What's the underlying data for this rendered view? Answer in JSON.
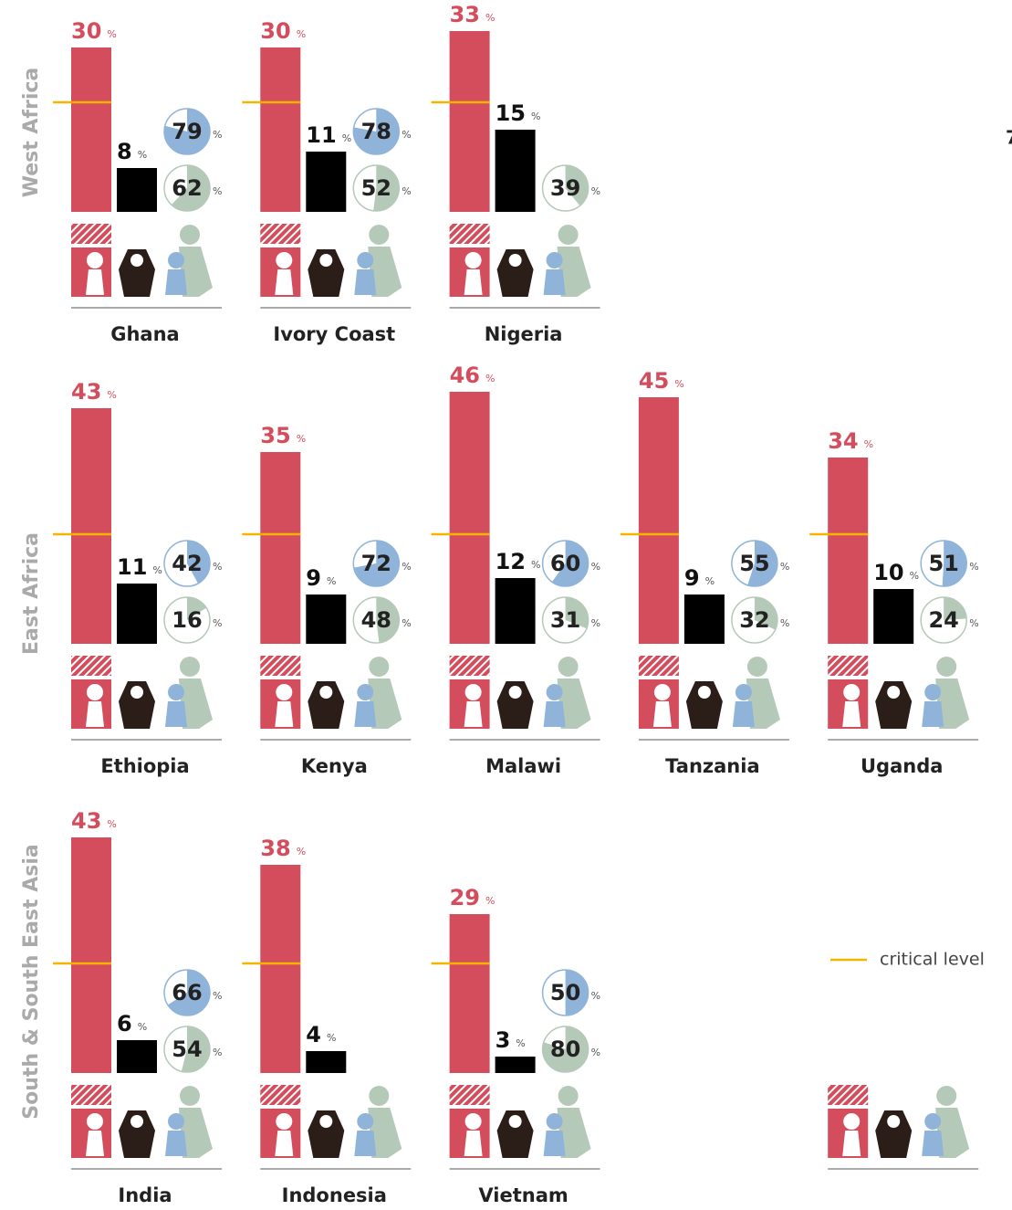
{
  "unit": "%",
  "critical_level": 20,
  "legend": {
    "critical": "critical level"
  },
  "edge_text": "7",
  "regions": [
    {
      "name": "West Africa",
      "countries": [
        {
          "name": "Ghana",
          "red_bar": 30,
          "black_bar": 8,
          "blue_pie": 79,
          "green_pie": 62
        },
        {
          "name": "Ivory Coast",
          "red_bar": 30,
          "black_bar": 11,
          "blue_pie": 78,
          "green_pie": 52
        },
        {
          "name": "Nigeria",
          "red_bar": 33,
          "black_bar": 15,
          "blue_pie": null,
          "green_pie": 39
        }
      ]
    },
    {
      "name": "East Africa",
      "countries": [
        {
          "name": "Ethiopia",
          "red_bar": 43,
          "black_bar": 11,
          "blue_pie": 42,
          "green_pie": 16
        },
        {
          "name": "Kenya",
          "red_bar": 35,
          "black_bar": 9,
          "blue_pie": 72,
          "green_pie": 48
        },
        {
          "name": "Malawi",
          "red_bar": 46,
          "black_bar": 12,
          "blue_pie": 60,
          "green_pie": 31
        },
        {
          "name": "Tanzania",
          "red_bar": 45,
          "black_bar": 9,
          "blue_pie": 55,
          "green_pie": 32
        },
        {
          "name": "Uganda",
          "red_bar": 34,
          "black_bar": 10,
          "blue_pie": 51,
          "green_pie": 24
        }
      ]
    },
    {
      "name": "South & South East Asia",
      "countries": [
        {
          "name": "India",
          "red_bar": 43,
          "black_bar": 6,
          "blue_pie": 66,
          "green_pie": 54
        },
        {
          "name": "Indonesia",
          "red_bar": 38,
          "black_bar": 4,
          "blue_pie": null,
          "green_pie": null
        },
        {
          "name": "Vietnam",
          "red_bar": 29,
          "black_bar": 3,
          "blue_pie": 50,
          "green_pie": 80
        }
      ]
    }
  ]
}
